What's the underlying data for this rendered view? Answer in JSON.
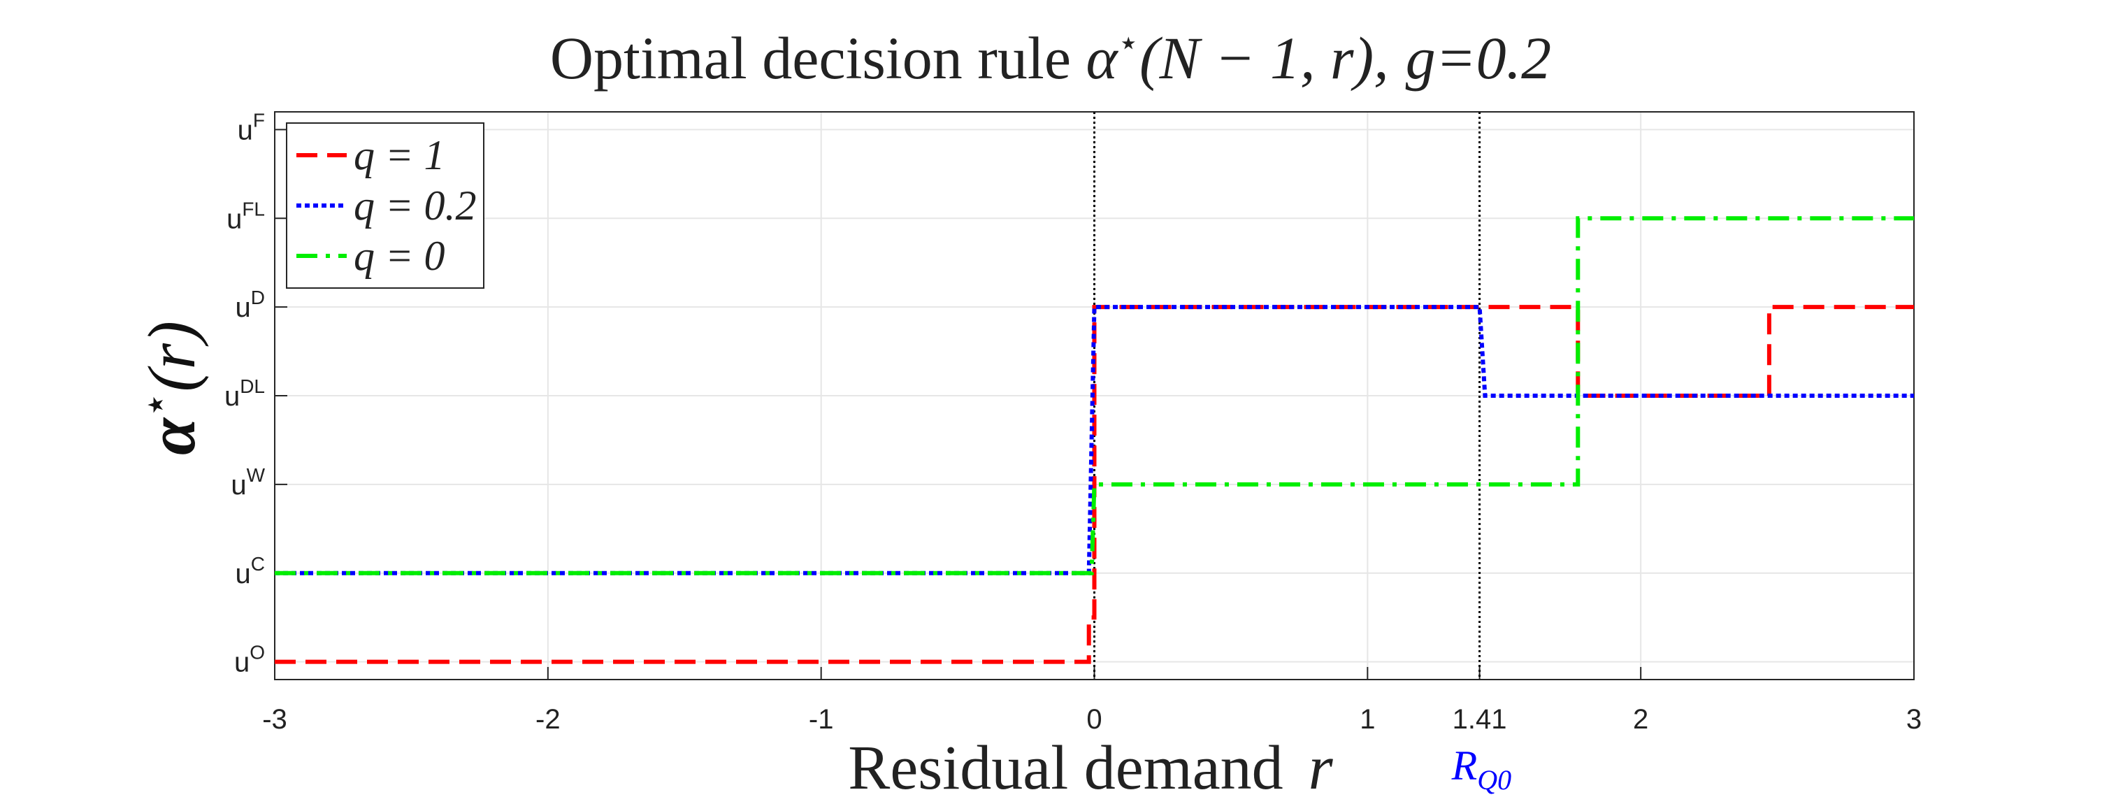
{
  "chart_data": {
    "type": "line",
    "title": {
      "prefix": "Optimal decision rule ",
      "alpha": "α",
      "star": "⋆",
      "args": "(N − 1, r),",
      "gparam": "g=0.2"
    },
    "xlabel": {
      "text": "Residual demand",
      "var": "r"
    },
    "ylabel": {
      "alpha": "α",
      "star": "⋆",
      "args": "(r)"
    },
    "xlim": [
      -3,
      3
    ],
    "ylim": [
      -0.2,
      6.2
    ],
    "x_ticks": [
      {
        "value": -3,
        "label": "-3"
      },
      {
        "value": -2,
        "label": "-2"
      },
      {
        "value": -1,
        "label": "-1"
      },
      {
        "value": 0,
        "label": "0"
      },
      {
        "value": 1,
        "label": "1"
      },
      {
        "value": 1.41,
        "label": "1.41"
      },
      {
        "value": 2,
        "label": "2"
      },
      {
        "value": 3,
        "label": "3"
      }
    ],
    "y_ticks": [
      {
        "value": 0,
        "base": "u",
        "sup": "O"
      },
      {
        "value": 1,
        "base": "u",
        "sup": "C"
      },
      {
        "value": 2,
        "base": "u",
        "sup": "W"
      },
      {
        "value": 3,
        "base": "u",
        "sup": "DL"
      },
      {
        "value": 4,
        "base": "u",
        "sup": "D"
      },
      {
        "value": 5,
        "base": "u",
        "sup": "FL"
      },
      {
        "value": 6,
        "base": "u",
        "sup": "F"
      }
    ],
    "grid": true,
    "legend": {
      "placement": "top-left"
    },
    "vlines": [
      {
        "x": 0
      },
      {
        "x": 1.41
      }
    ],
    "rq0_label": {
      "base": "R",
      "sub": "Q0",
      "color": "#0000ff"
    },
    "series": [
      {
        "name": "q = 1",
        "color": "#ff0000",
        "dash": "dashed",
        "points": [
          [
            -3,
            0
          ],
          [
            -0.02,
            0
          ],
          [
            -0.02,
            0.5
          ],
          [
            0,
            0.5
          ],
          [
            0,
            4
          ],
          [
            1.77,
            4
          ],
          [
            1.77,
            3
          ],
          [
            2.47,
            3
          ],
          [
            2.47,
            4
          ],
          [
            3,
            4
          ]
        ]
      },
      {
        "name": "q = 0.2",
        "color": "#0000ff",
        "dash": "dotted",
        "points": [
          [
            -3,
            1
          ],
          [
            -0.02,
            1
          ],
          [
            0,
            4
          ],
          [
            1.41,
            4
          ],
          [
            1.43,
            3
          ],
          [
            3,
            3
          ]
        ]
      },
      {
        "name": "q = 0",
        "color": "#00ee00",
        "dash": "dashdot",
        "points": [
          [
            -3,
            1
          ],
          [
            -0.01,
            1
          ],
          [
            0,
            2
          ],
          [
            1.77,
            2
          ],
          [
            1.77,
            5
          ],
          [
            3,
            5
          ]
        ]
      }
    ]
  }
}
